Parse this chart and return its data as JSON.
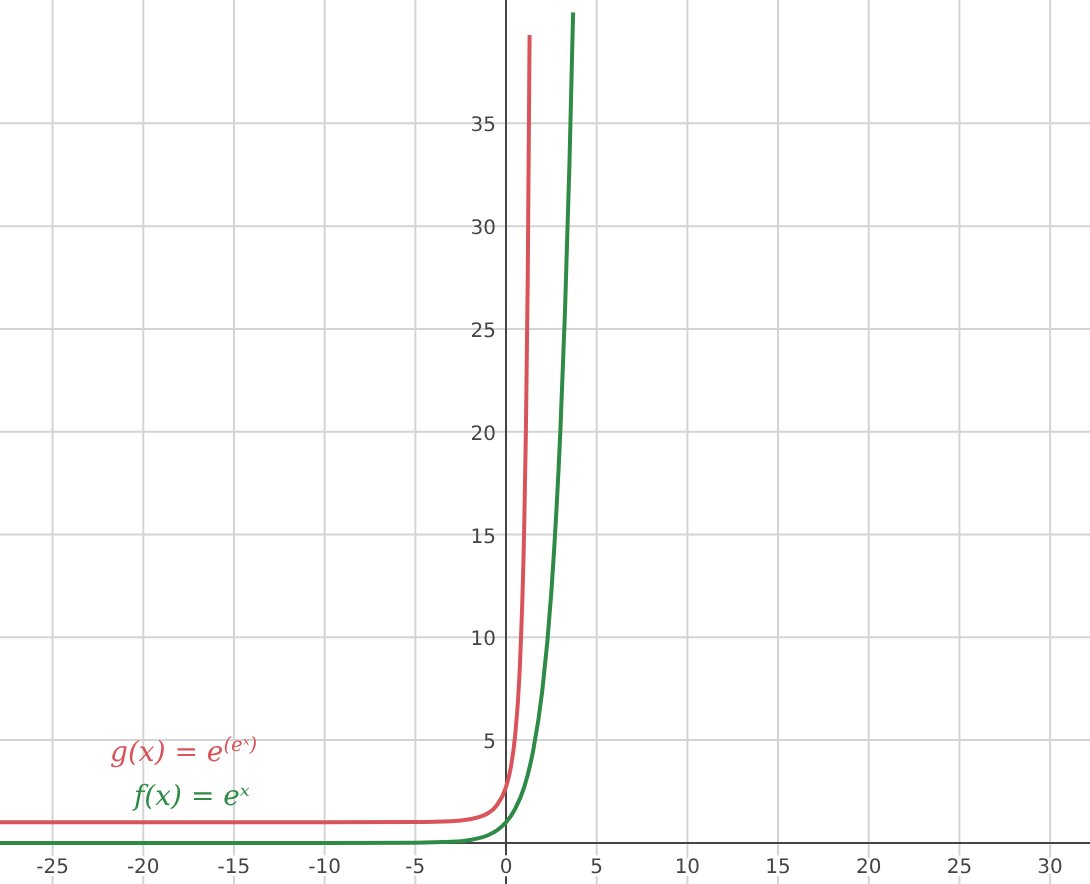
{
  "chart_data": {
    "type": "line",
    "xlim": [
      -27.9,
      32.2
    ],
    "ylim": [
      -2,
      41
    ],
    "xticks": [
      -25,
      -20,
      -15,
      -10,
      -5,
      0,
      5,
      10,
      15,
      20,
      25,
      30
    ],
    "yticks": [
      5,
      10,
      15,
      20,
      25,
      30,
      35
    ],
    "grid": true,
    "marker": "none",
    "line_style": "solid",
    "series": [
      {
        "name": "g(x) = e$^{(eˣ)}$",
        "color": "#d9545a",
        "x": [
          -27.9,
          -10,
          -5,
          -3,
          -2,
          -1.5,
          -1,
          -0.5,
          0,
          0.25,
          0.5,
          0.75,
          1,
          1.1,
          1.2,
          1.3
        ],
        "values": [
          1,
          1,
          1.01,
          1.05,
          1.15,
          1.25,
          1.44,
          1.84,
          2.72,
          3.6,
          5.2,
          8.3,
          15.2,
          20.2,
          27.6,
          39.3
        ]
      },
      {
        "name": "f(x) = eˣ",
        "color": "#2e8b45",
        "x": [
          -27.9,
          -10,
          -5,
          -3,
          -2,
          -1,
          -0.5,
          0,
          0.5,
          1,
          1.5,
          2,
          2.5,
          3,
          3.25,
          3.5,
          3.7
        ],
        "values": [
          0,
          0,
          0.01,
          0.05,
          0.14,
          0.37,
          0.61,
          1,
          1.65,
          2.7,
          4.5,
          7.4,
          12.2,
          20.1,
          25.8,
          33.1,
          40.4
        ]
      }
    ]
  }
}
